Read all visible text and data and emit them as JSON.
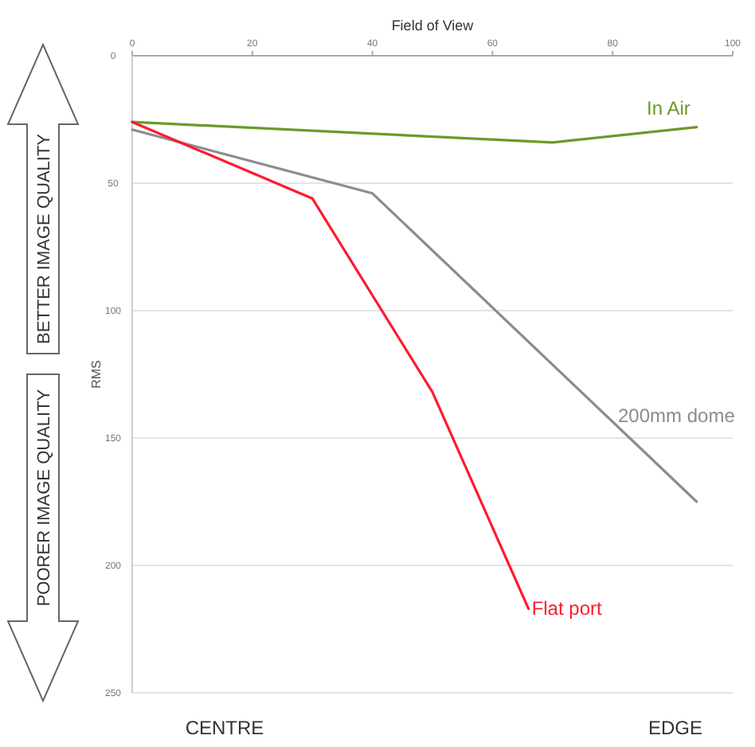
{
  "chart_data": {
    "type": "line",
    "xlabel": "Field of View",
    "ylabel": "RMS",
    "xlim": [
      0,
      100
    ],
    "xticks": [
      0,
      20,
      40,
      60,
      80,
      100
    ],
    "ylim": [
      250,
      0
    ],
    "yticks": [
      0,
      50,
      100,
      150,
      200,
      250
    ],
    "grid": "y",
    "marker": "none",
    "line_style": "solid",
    "series": [
      {
        "name": "In Air",
        "color": "#6a9a2a",
        "x": [
          0,
          70,
          94
        ],
        "values": [
          26,
          34,
          28
        ]
      },
      {
        "name": "200mm dome",
        "color": "#8c8c8c",
        "x": [
          0,
          40,
          94
        ],
        "values": [
          29,
          54,
          175
        ]
      },
      {
        "name": "Flat port",
        "color": "#ff1a2e",
        "x": [
          0,
          30,
          50,
          66
        ],
        "values": [
          26,
          56,
          132,
          217
        ]
      }
    ],
    "annotations": [
      "CENTRE",
      "EDGE",
      "BETTER IMAGE QUALITY",
      "POORER IMAGE QUALITY"
    ]
  }
}
